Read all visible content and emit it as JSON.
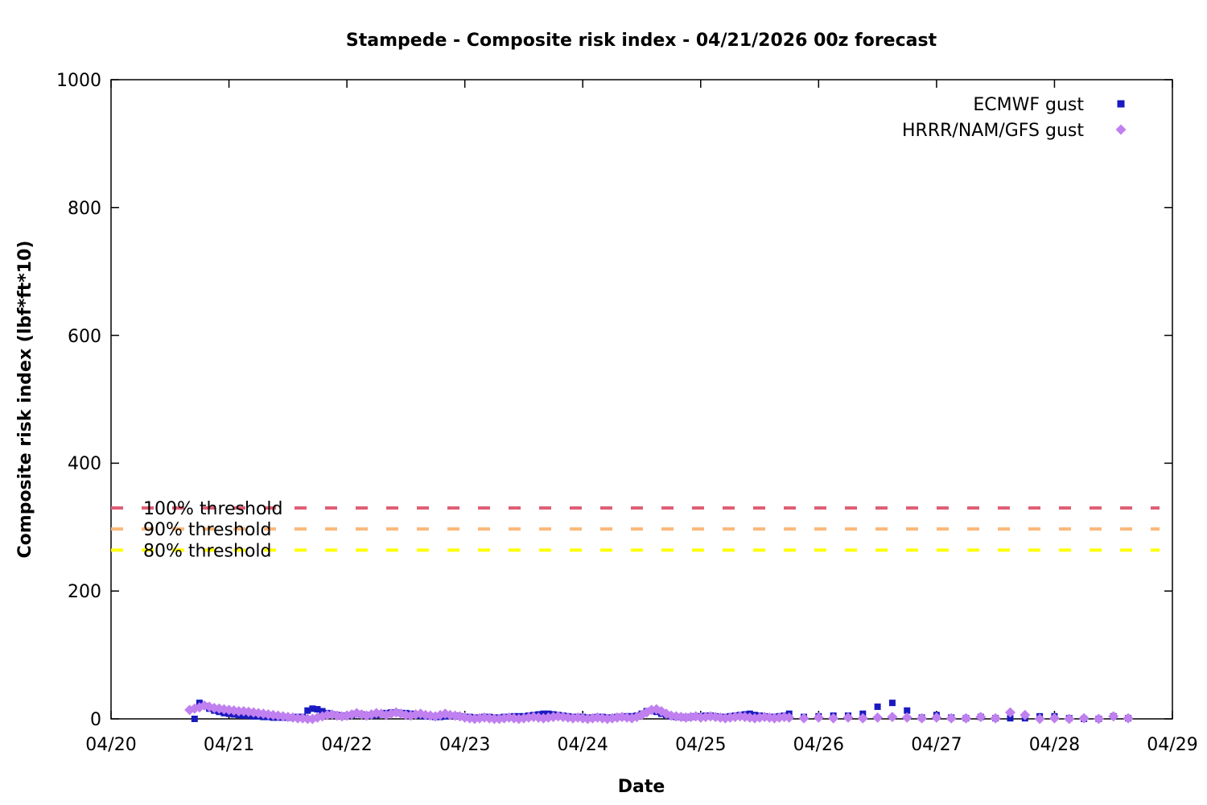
{
  "title": "Stampede - Composite risk index - 04/21/2026 00z forecast",
  "x_axis": {
    "label": "Date",
    "tick_labels": [
      "04/20",
      "04/21",
      "04/22",
      "04/23",
      "04/24",
      "04/25",
      "04/26",
      "04/27",
      "04/28",
      "04/29"
    ]
  },
  "y_axis": {
    "label": "Composite risk index (lbf*ft*10)",
    "tick_labels": [
      "0",
      "200",
      "400",
      "600",
      "800",
      "1000"
    ]
  },
  "chart_data": {
    "type": "scatter",
    "title": "Stampede - Composite risk index - 04/21/2026 00z forecast",
    "xlabel": "Date",
    "ylabel": "Composite risk index (lbf*ft*10)",
    "x_unit": "hours since 04/20 00z",
    "xlim_hours": [
      0,
      216
    ],
    "ylim": [
      0,
      1000
    ],
    "y_ticks": [
      0,
      200,
      400,
      600,
      800,
      1000
    ],
    "x_tick_labels": [
      "04/20",
      "04/21",
      "04/22",
      "04/23",
      "04/24",
      "04/25",
      "04/26",
      "04/27",
      "04/28",
      "04/29"
    ],
    "grid": false,
    "legend_position": "top-right-inside",
    "thresholds": [
      {
        "label": "100% threshold",
        "value": 330,
        "color": "#df5f76"
      },
      {
        "label": "90% threshold",
        "value": 297,
        "color": "#fcb879"
      },
      {
        "label": "80% threshold",
        "value": 264,
        "color": "#ffff00"
      }
    ],
    "series": [
      {
        "name": "ECMWF gust",
        "marker": "square",
        "color": "#1a1ac0",
        "points": [
          [
            17,
            0
          ],
          [
            18,
            25
          ],
          [
            19,
            20
          ],
          [
            20,
            16
          ],
          [
            21,
            13
          ],
          [
            22,
            11
          ],
          [
            23,
            9
          ],
          [
            24,
            8
          ],
          [
            25,
            7
          ],
          [
            26,
            6
          ],
          [
            27,
            5
          ],
          [
            28,
            5
          ],
          [
            29,
            4
          ],
          [
            30,
            4
          ],
          [
            31,
            3
          ],
          [
            32,
            3
          ],
          [
            33,
            2
          ],
          [
            34,
            2
          ],
          [
            35,
            2
          ],
          [
            36,
            2
          ],
          [
            37,
            2
          ],
          [
            38,
            3
          ],
          [
            39,
            3
          ],
          [
            40,
            13
          ],
          [
            41,
            16
          ],
          [
            42,
            15
          ],
          [
            43,
            12
          ],
          [
            44,
            9
          ],
          [
            45,
            7
          ],
          [
            46,
            6
          ],
          [
            47,
            5
          ],
          [
            48,
            5
          ],
          [
            49,
            6
          ],
          [
            50,
            8
          ],
          [
            51,
            7
          ],
          [
            52,
            6
          ],
          [
            53,
            5
          ],
          [
            54,
            6
          ],
          [
            55,
            7
          ],
          [
            56,
            9
          ],
          [
            57,
            10
          ],
          [
            58,
            10
          ],
          [
            59,
            9
          ],
          [
            60,
            9
          ],
          [
            61,
            8
          ],
          [
            62,
            7
          ],
          [
            63,
            5
          ],
          [
            64,
            4
          ],
          [
            65,
            4
          ],
          [
            66,
            3
          ],
          [
            67,
            3
          ],
          [
            68,
            4
          ],
          [
            69,
            5
          ],
          [
            70,
            5
          ],
          [
            71,
            4
          ],
          [
            72,
            3
          ],
          [
            73,
            3
          ],
          [
            74,
            2
          ],
          [
            75,
            2
          ],
          [
            76,
            3
          ],
          [
            77,
            3
          ],
          [
            78,
            2
          ],
          [
            79,
            2
          ],
          [
            80,
            3
          ],
          [
            81,
            3
          ],
          [
            82,
            4
          ],
          [
            83,
            4
          ],
          [
            84,
            4
          ],
          [
            85,
            5
          ],
          [
            86,
            6
          ],
          [
            87,
            7
          ],
          [
            88,
            8
          ],
          [
            89,
            8
          ],
          [
            90,
            7
          ],
          [
            91,
            6
          ],
          [
            92,
            5
          ],
          [
            93,
            4
          ],
          [
            94,
            3
          ],
          [
            95,
            3
          ],
          [
            96,
            3
          ],
          [
            97,
            2
          ],
          [
            98,
            2
          ],
          [
            99,
            3
          ],
          [
            100,
            3
          ],
          [
            101,
            2
          ],
          [
            102,
            2
          ],
          [
            103,
            3
          ],
          [
            104,
            3
          ],
          [
            105,
            4
          ],
          [
            106,
            4
          ],
          [
            107,
            5
          ],
          [
            108,
            8
          ],
          [
            109,
            12
          ],
          [
            110,
            13
          ],
          [
            111,
            11
          ],
          [
            112,
            8
          ],
          [
            113,
            6
          ],
          [
            114,
            4
          ],
          [
            115,
            3
          ],
          [
            116,
            3
          ],
          [
            117,
            2
          ],
          [
            118,
            3
          ],
          [
            119,
            4
          ],
          [
            120,
            4
          ],
          [
            121,
            5
          ],
          [
            122,
            5
          ],
          [
            123,
            4
          ],
          [
            124,
            3
          ],
          [
            125,
            3
          ],
          [
            126,
            4
          ],
          [
            127,
            5
          ],
          [
            128,
            6
          ],
          [
            129,
            7
          ],
          [
            130,
            8
          ],
          [
            131,
            6
          ],
          [
            132,
            5
          ],
          [
            133,
            4
          ],
          [
            134,
            3
          ],
          [
            135,
            3
          ],
          [
            136,
            4
          ],
          [
            137,
            5
          ],
          [
            138,
            8
          ],
          [
            141,
            3
          ],
          [
            144,
            4
          ],
          [
            147,
            5
          ],
          [
            150,
            5
          ],
          [
            153,
            8
          ],
          [
            156,
            19
          ],
          [
            159,
            25
          ],
          [
            162,
            13
          ],
          [
            165,
            2
          ],
          [
            168,
            6
          ],
          [
            171,
            2
          ],
          [
            174,
            1
          ],
          [
            177,
            3
          ],
          [
            180,
            1
          ],
          [
            183,
            1
          ],
          [
            186,
            1
          ],
          [
            189,
            4
          ],
          [
            192,
            4
          ],
          [
            195,
            1
          ],
          [
            198,
            0
          ],
          [
            201,
            0
          ],
          [
            204,
            4
          ],
          [
            207,
            1
          ]
        ]
      },
      {
        "name": "HRRR/NAM/GFS gust",
        "marker": "diamond",
        "color": "#c080f0",
        "points": [
          [
            16,
            14
          ],
          [
            17,
            16
          ],
          [
            18,
            18
          ],
          [
            19,
            21
          ],
          [
            20,
            19
          ],
          [
            21,
            17
          ],
          [
            22,
            16
          ],
          [
            23,
            15
          ],
          [
            24,
            14
          ],
          [
            25,
            13
          ],
          [
            26,
            12
          ],
          [
            27,
            12
          ],
          [
            28,
            11
          ],
          [
            29,
            10
          ],
          [
            30,
            9
          ],
          [
            31,
            8
          ],
          [
            32,
            7
          ],
          [
            33,
            6
          ],
          [
            34,
            5
          ],
          [
            35,
            4
          ],
          [
            36,
            3
          ],
          [
            37,
            2
          ],
          [
            38,
            1
          ],
          [
            39,
            1
          ],
          [
            40,
            0
          ],
          [
            41,
            0
          ],
          [
            42,
            2
          ],
          [
            43,
            4
          ],
          [
            44,
            6
          ],
          [
            45,
            7
          ],
          [
            46,
            5
          ],
          [
            47,
            4
          ],
          [
            48,
            5
          ],
          [
            49,
            7
          ],
          [
            50,
            9
          ],
          [
            51,
            7
          ],
          [
            52,
            5
          ],
          [
            53,
            7
          ],
          [
            54,
            9
          ],
          [
            55,
            8
          ],
          [
            56,
            6
          ],
          [
            57,
            8
          ],
          [
            58,
            10
          ],
          [
            59,
            8
          ],
          [
            60,
            6
          ],
          [
            61,
            5
          ],
          [
            62,
            7
          ],
          [
            63,
            8
          ],
          [
            64,
            6
          ],
          [
            65,
            5
          ],
          [
            66,
            4
          ],
          [
            67,
            6
          ],
          [
            68,
            8
          ],
          [
            69,
            6
          ],
          [
            70,
            5
          ],
          [
            71,
            4
          ],
          [
            72,
            2
          ],
          [
            73,
            1
          ],
          [
            74,
            0
          ],
          [
            75,
            1
          ],
          [
            76,
            2
          ],
          [
            77,
            1
          ],
          [
            78,
            0
          ],
          [
            79,
            0
          ],
          [
            80,
            1
          ],
          [
            81,
            2
          ],
          [
            82,
            1
          ],
          [
            83,
            0
          ],
          [
            84,
            1
          ],
          [
            85,
            2
          ],
          [
            86,
            3
          ],
          [
            87,
            2
          ],
          [
            88,
            1
          ],
          [
            89,
            2
          ],
          [
            90,
            3
          ],
          [
            91,
            4
          ],
          [
            92,
            3
          ],
          [
            93,
            2
          ],
          [
            94,
            1
          ],
          [
            95,
            2
          ],
          [
            96,
            1
          ],
          [
            97,
            0
          ],
          [
            98,
            1
          ],
          [
            99,
            2
          ],
          [
            100,
            1
          ],
          [
            101,
            0
          ],
          [
            102,
            1
          ],
          [
            103,
            2
          ],
          [
            104,
            3
          ],
          [
            105,
            2
          ],
          [
            106,
            1
          ],
          [
            107,
            3
          ],
          [
            108,
            6
          ],
          [
            109,
            10
          ],
          [
            110,
            14
          ],
          [
            111,
            15
          ],
          [
            112,
            12
          ],
          [
            113,
            8
          ],
          [
            114,
            5
          ],
          [
            115,
            4
          ],
          [
            116,
            3
          ],
          [
            117,
            2
          ],
          [
            118,
            3
          ],
          [
            119,
            4
          ],
          [
            120,
            2
          ],
          [
            121,
            3
          ],
          [
            122,
            4
          ],
          [
            123,
            3
          ],
          [
            124,
            2
          ],
          [
            125,
            1
          ],
          [
            126,
            2
          ],
          [
            127,
            3
          ],
          [
            128,
            4
          ],
          [
            129,
            3
          ],
          [
            130,
            2
          ],
          [
            131,
            1
          ],
          [
            132,
            2
          ],
          [
            133,
            3
          ],
          [
            134,
            2
          ],
          [
            135,
            1
          ],
          [
            136,
            2
          ],
          [
            137,
            3
          ],
          [
            138,
            2
          ],
          [
            141,
            1
          ],
          [
            144,
            2
          ],
          [
            147,
            1
          ],
          [
            150,
            2
          ],
          [
            153,
            1
          ],
          [
            156,
            2
          ],
          [
            159,
            3
          ],
          [
            162,
            2
          ],
          [
            165,
            1
          ],
          [
            168,
            2
          ],
          [
            171,
            1
          ],
          [
            174,
            1
          ],
          [
            177,
            3
          ],
          [
            180,
            1
          ],
          [
            183,
            10
          ],
          [
            186,
            6
          ],
          [
            189,
            0
          ],
          [
            192,
            1
          ],
          [
            195,
            0
          ],
          [
            198,
            1
          ],
          [
            201,
            0
          ],
          [
            204,
            4
          ],
          [
            207,
            1
          ]
        ]
      }
    ]
  }
}
